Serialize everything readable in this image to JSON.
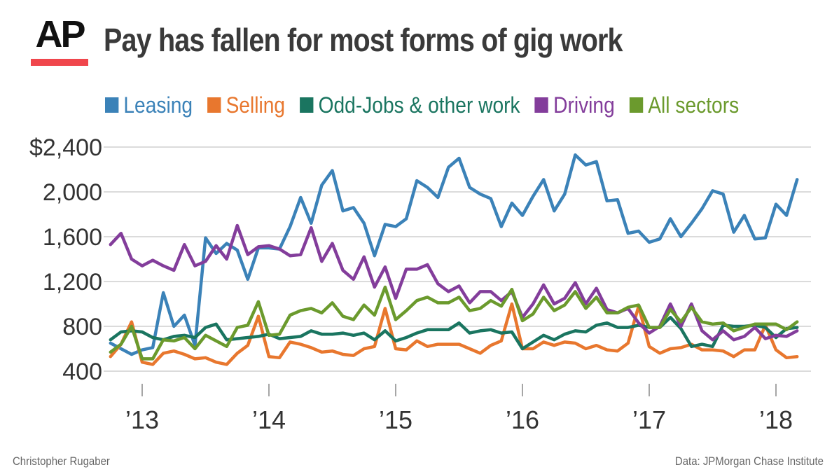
{
  "header": {
    "logo_text": "AP",
    "title": "Pay has fallen for most forms of gig work"
  },
  "footer": {
    "credit": "Christopher Rugaber",
    "source": "Data: JPMorgan Chase Institute"
  },
  "colors": {
    "Leasing": "#3b82b8",
    "Selling": "#e8772e",
    "Odd-Jobs & other work": "#1a7560",
    "Driving": "#833d9b",
    "All sectors": "#6b9a2d",
    "logo_bar": "#f0464c"
  },
  "chart_data": {
    "type": "line",
    "title": "Pay has fallen for most forms of gig work",
    "xlabel": "",
    "ylabel": "",
    "y_tick_values": [
      400,
      800,
      1200,
      1600,
      2000,
      2400
    ],
    "y_tick_labels": [
      "400",
      "800",
      "1,200",
      "1,600",
      "2,000",
      "$2,400"
    ],
    "x_tick_values": [
      "2013-01",
      "2014-01",
      "2015-01",
      "2016-01",
      "2017-01",
      "2018-01"
    ],
    "x_tick_labels": [
      "’13",
      "’14",
      "’15",
      "’16",
      "’17",
      "’18"
    ],
    "ylim": [
      400,
      2400
    ],
    "xlim": [
      "2012-10",
      "2018-03"
    ],
    "grid": true,
    "legend_position": "top",
    "x": [
      "2012-10",
      "2012-11",
      "2012-12",
      "2013-01",
      "2013-02",
      "2013-03",
      "2013-04",
      "2013-05",
      "2013-06",
      "2013-07",
      "2013-08",
      "2013-09",
      "2013-10",
      "2013-11",
      "2013-12",
      "2014-01",
      "2014-02",
      "2014-03",
      "2014-04",
      "2014-05",
      "2014-06",
      "2014-07",
      "2014-08",
      "2014-09",
      "2014-10",
      "2014-11",
      "2014-12",
      "2015-01",
      "2015-02",
      "2015-03",
      "2015-04",
      "2015-05",
      "2015-06",
      "2015-07",
      "2015-08",
      "2015-09",
      "2015-10",
      "2015-11",
      "2015-12",
      "2016-01",
      "2016-02",
      "2016-03",
      "2016-04",
      "2016-05",
      "2016-06",
      "2016-07",
      "2016-08",
      "2016-09",
      "2016-10",
      "2016-11",
      "2016-12",
      "2017-01",
      "2017-02",
      "2017-03",
      "2017-04",
      "2017-05",
      "2017-06",
      "2017-07",
      "2017-08",
      "2017-09",
      "2017-10",
      "2017-11",
      "2017-12",
      "2018-01",
      "2018-02",
      "2018-03"
    ],
    "series": [
      {
        "name": "Leasing",
        "values": [
          650,
          600,
          550,
          590,
          610,
          1100,
          800,
          900,
          630,
          1590,
          1450,
          1540,
          1480,
          1220,
          1500,
          1500,
          1490,
          1690,
          1950,
          1720,
          2060,
          2190,
          1830,
          1860,
          1720,
          1430,
          1710,
          1690,
          1760,
          2100,
          2040,
          1950,
          2220,
          2300,
          2040,
          1980,
          1940,
          1690,
          1900,
          1790,
          1960,
          2110,
          1830,
          1980,
          2330,
          2240,
          2270,
          1920,
          1930,
          1630,
          1650,
          1550,
          1580,
          1760,
          1600,
          1720,
          1850,
          2010,
          1980,
          1640,
          1790,
          1580,
          1590,
          1890,
          1790,
          2110
        ]
      },
      {
        "name": "Selling",
        "values": [
          530,
          640,
          840,
          480,
          460,
          560,
          580,
          550,
          510,
          520,
          480,
          460,
          560,
          630,
          890,
          530,
          520,
          660,
          640,
          610,
          570,
          580,
          550,
          540,
          600,
          620,
          960,
          600,
          590,
          670,
          620,
          640,
          640,
          640,
          600,
          560,
          630,
          670,
          1000,
          600,
          600,
          660,
          630,
          660,
          650,
          600,
          630,
          590,
          580,
          650,
          980,
          620,
          560,
          600,
          610,
          640,
          590,
          590,
          580,
          530,
          590,
          590,
          810,
          590,
          520,
          530
        ]
      },
      {
        "name": "Odd-Jobs & other work",
        "values": [
          680,
          750,
          760,
          750,
          700,
          680,
          710,
          720,
          700,
          790,
          820,
          680,
          690,
          700,
          710,
          730,
          690,
          700,
          710,
          760,
          730,
          730,
          740,
          720,
          740,
          680,
          760,
          670,
          700,
          740,
          770,
          770,
          770,
          830,
          740,
          760,
          770,
          740,
          750,
          600,
          660,
          720,
          680,
          730,
          760,
          750,
          810,
          830,
          790,
          790,
          810,
          790,
          790,
          880,
          780,
          620,
          640,
          620,
          810,
          800,
          800,
          810,
          790,
          700,
          780,
          790
        ]
      },
      {
        "name": "Driving",
        "values": [
          1530,
          1630,
          1400,
          1340,
          1390,
          1340,
          1300,
          1530,
          1340,
          1380,
          1520,
          1400,
          1700,
          1440,
          1510,
          1520,
          1490,
          1430,
          1440,
          1680,
          1380,
          1540,
          1300,
          1220,
          1420,
          1150,
          1330,
          1050,
          1310,
          1310,
          1350,
          1180,
          1110,
          1160,
          1010,
          1110,
          1110,
          1030,
          1110,
          880,
          1000,
          1170,
          1000,
          1050,
          1190,
          1000,
          1140,
          950,
          920,
          960,
          830,
          740,
          800,
          1000,
          800,
          1000,
          760,
          680,
          760,
          680,
          710,
          790,
          690,
          720,
          710,
          760
        ]
      },
      {
        "name": "All sectors",
        "values": [
          570,
          640,
          800,
          510,
          510,
          680,
          670,
          700,
          600,
          720,
          670,
          620,
          790,
          810,
          1020,
          720,
          730,
          900,
          940,
          960,
          920,
          1010,
          890,
          860,
          990,
          900,
          1150,
          860,
          940,
          1030,
          1060,
          1010,
          1010,
          1060,
          940,
          960,
          1030,
          980,
          1130,
          850,
          910,
          1060,
          940,
          990,
          1110,
          960,
          1060,
          920,
          920,
          970,
          990,
          790,
          790,
          950,
          840,
          970,
          840,
          820,
          830,
          760,
          790,
          820,
          820,
          820,
          770,
          840
        ]
      }
    ]
  }
}
